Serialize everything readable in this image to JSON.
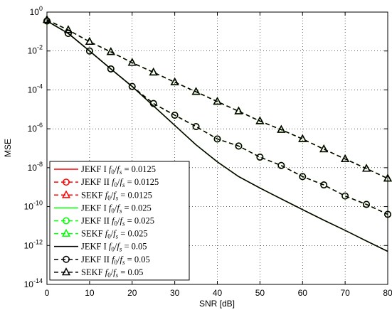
{
  "chart_data": {
    "type": "line",
    "xlabel": "SNR [dB]",
    "ylabel": "MSE",
    "xlim": [
      0,
      80
    ],
    "ylim_log10": [
      -14,
      0
    ],
    "yscale": "log",
    "grid": true,
    "legend_position": "bottom-left",
    "x_ticks": [
      "0",
      "10",
      "20",
      "30",
      "40",
      "50",
      "60",
      "70",
      "80"
    ],
    "y_ticks": [
      {
        "base": "10",
        "exp": "0"
      },
      {
        "base": "10",
        "exp": "-2"
      },
      {
        "base": "10",
        "exp": "-4"
      },
      {
        "base": "10",
        "exp": "-6"
      },
      {
        "base": "10",
        "exp": "-8"
      },
      {
        "base": "10",
        "exp": "-10"
      },
      {
        "base": "10",
        "exp": "-12"
      },
      {
        "base": "10",
        "exp": "-14"
      }
    ],
    "x": [
      0,
      5,
      10,
      15,
      20,
      25,
      30,
      35,
      40,
      45,
      50,
      55,
      60,
      65,
      70,
      75,
      80
    ],
    "series": [
      {
        "name": "JEKF I f0/fs = 0.0125",
        "legend_main": "JEKF I ",
        "legend_eq": " = 0.0125",
        "color": "#ff0000",
        "line": "solid",
        "marker": "none",
        "values": [
          0.35,
          0.08,
          0.01,
          0.0012,
          0.00015,
          1.5e-05,
          1.5e-06,
          1.5e-07,
          2e-08,
          3.5e-09,
          9e-10,
          2.5e-10,
          7e-11,
          2e-11,
          6e-12,
          1.7e-12,
          5e-13
        ]
      },
      {
        "name": "JEKF II f0/fs = 0.0125",
        "legend_main": "JEKF II ",
        "legend_eq": " = 0.0125",
        "color": "#ff0000",
        "line": "dashed",
        "marker": "circle",
        "values": [
          0.35,
          0.08,
          0.01,
          0.0012,
          0.00015,
          2e-05,
          5e-06,
          1.3e-06,
          3e-07,
          1.3e-07,
          3.5e-08,
          1.3e-08,
          3.5e-09,
          1.3e-09,
          3.5e-10,
          1.3e-10,
          4e-11
        ]
      },
      {
        "name": "SEKF f0/fs = 0.0125",
        "legend_main": "SEKF ",
        "legend_eq": " = 0.0125",
        "color": "#ff0000",
        "line": "dashed",
        "marker": "triangle",
        "values": [
          0.4,
          0.12,
          0.03,
          0.009,
          0.0025,
          0.0008,
          0.00025,
          8e-05,
          2.5e-05,
          8e-06,
          2.5e-06,
          9e-07,
          3e-07,
          9e-08,
          2.8e-08,
          9e-09,
          2.8e-09
        ]
      },
      {
        "name": "JEKF I f0/fs = 0.025",
        "legend_main": "JEKF I ",
        "legend_eq": " = 0.025",
        "color": "#00ff00",
        "line": "solid",
        "marker": "none",
        "values": [
          0.35,
          0.08,
          0.01,
          0.0012,
          0.00015,
          1.5e-05,
          1.5e-06,
          1.5e-07,
          2e-08,
          3.5e-09,
          9e-10,
          2.5e-10,
          7e-11,
          2e-11,
          6e-12,
          1.7e-12,
          5e-13
        ]
      },
      {
        "name": "JEKF II f0/fs = 0.025",
        "legend_main": "JEKF II ",
        "legend_eq": " = 0.025",
        "color": "#00ff00",
        "line": "dashed",
        "marker": "circle",
        "values": [
          0.35,
          0.08,
          0.01,
          0.0012,
          0.00015,
          2e-05,
          5e-06,
          1.3e-06,
          3e-07,
          1.3e-07,
          3.5e-08,
          1.3e-08,
          3.5e-09,
          1.3e-09,
          3.5e-10,
          1.3e-10,
          4e-11
        ]
      },
      {
        "name": "SEKF f0/fs = 0.025",
        "legend_main": "SEKF ",
        "legend_eq": " = 0.025",
        "color": "#00ff00",
        "line": "dashed",
        "marker": "triangle",
        "values": [
          0.4,
          0.12,
          0.03,
          0.009,
          0.0025,
          0.0008,
          0.00025,
          8e-05,
          2.5e-05,
          8e-06,
          2.5e-06,
          9e-07,
          3e-07,
          9e-08,
          2.8e-08,
          9e-09,
          2.8e-09
        ]
      },
      {
        "name": "JEKF I f0/fs = 0.05",
        "legend_main": "JEKF I ",
        "legend_eq": " = 0.05",
        "color": "#000000",
        "line": "solid",
        "marker": "none",
        "values": [
          0.35,
          0.08,
          0.01,
          0.0012,
          0.00015,
          1.5e-05,
          1.5e-06,
          1.5e-07,
          2e-08,
          3.5e-09,
          9e-10,
          2.5e-10,
          7e-11,
          2e-11,
          6e-12,
          1.7e-12,
          5e-13
        ]
      },
      {
        "name": "JEKF II f0/fs = 0.05",
        "legend_main": "JEKF II ",
        "legend_eq": " = 0.05",
        "color": "#000000",
        "line": "dashed",
        "marker": "circle",
        "values": [
          0.35,
          0.08,
          0.01,
          0.0012,
          0.00015,
          2e-05,
          5e-06,
          1.3e-06,
          3e-07,
          1.3e-07,
          3.5e-08,
          1.3e-08,
          3.5e-09,
          1.3e-09,
          3.5e-10,
          1.3e-10,
          4e-11
        ]
      },
      {
        "name": "SEKF f0/fs = 0.05",
        "legend_main": "SEKF ",
        "legend_eq": " = 0.05",
        "color": "#000000",
        "line": "dashed",
        "marker": "triangle",
        "values": [
          0.4,
          0.12,
          0.03,
          0.009,
          0.0025,
          0.0008,
          0.00025,
          8e-05,
          2.5e-05,
          8e-06,
          2.5e-06,
          9e-07,
          3e-07,
          9e-08,
          2.8e-08,
          9e-09,
          2.8e-09
        ]
      }
    ]
  }
}
